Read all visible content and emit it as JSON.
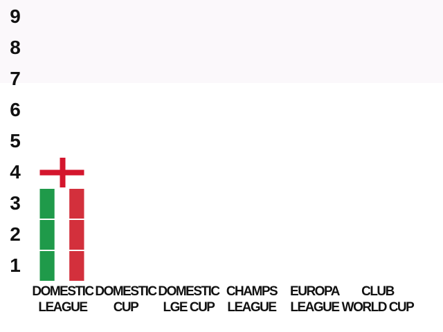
{
  "chart_data": {
    "type": "bar",
    "stacked": true,
    "categories": [
      [
        "DOMESTIC",
        "LEAGUE"
      ],
      [
        "DOMESTIC",
        "CUP"
      ],
      [
        "DOMESTIC",
        "LGE CUP"
      ],
      [
        "CHAMPS",
        "LEAGUE"
      ],
      [
        "EUROPA",
        "LEAGUE"
      ],
      [
        "CLUB",
        "WORLD CUP"
      ]
    ],
    "series": [
      {
        "pattern": "tricolor",
        "colors": [
          "#1f9a4a",
          "#ffffff",
          "#d3303c"
        ],
        "values": [
          3,
          0,
          0,
          0,
          0,
          0
        ]
      },
      {
        "pattern": "cross",
        "colors": [
          "#ffffff",
          "#d4162d"
        ],
        "values": [
          1,
          0,
          0,
          0,
          0,
          0
        ]
      }
    ],
    "ylim": [
      0,
      9
    ],
    "yticks": [
      1,
      2,
      3,
      4,
      5,
      6,
      7,
      8,
      9
    ],
    "grid": false
  }
}
